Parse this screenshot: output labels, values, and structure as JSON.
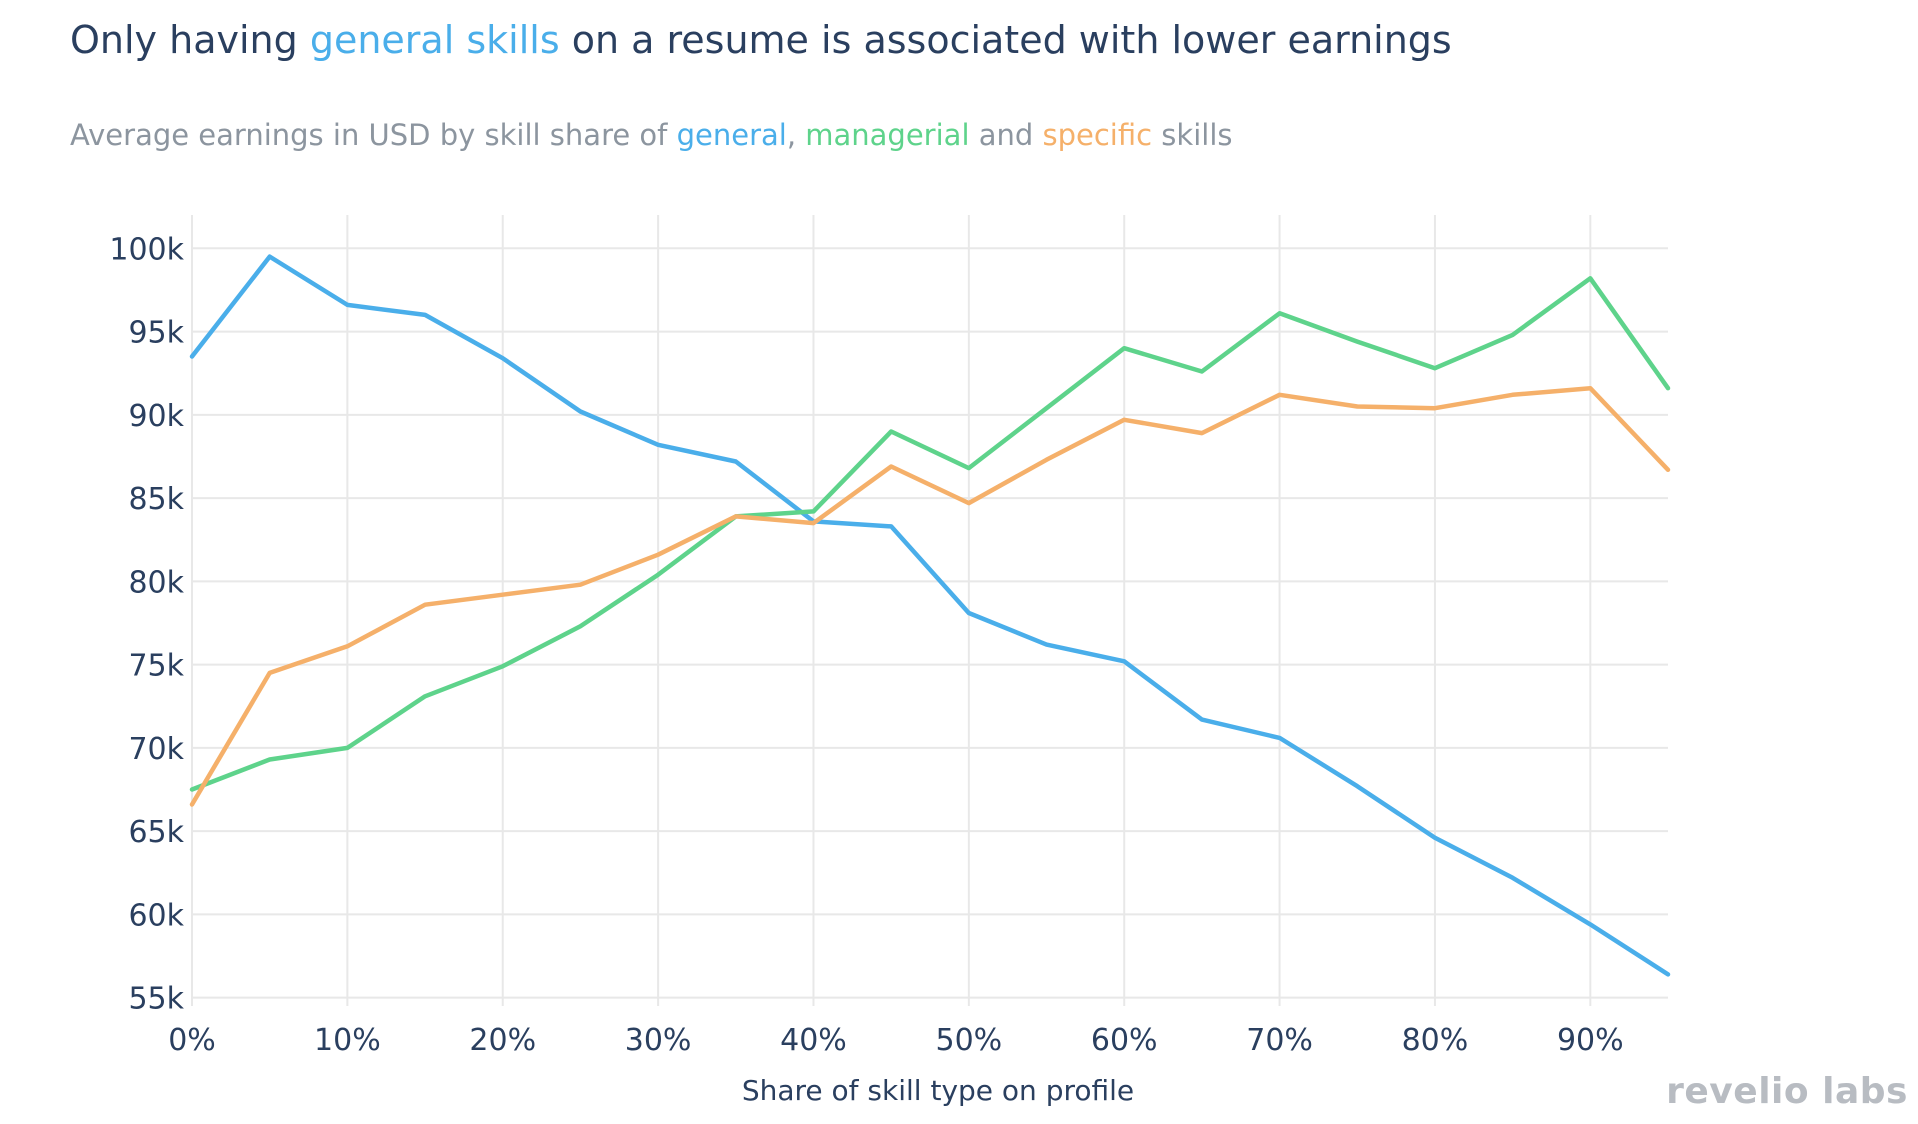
{
  "title": {
    "prefix": "Only having ",
    "highlight": "general skills",
    "suffix": " on a resume is associated with lower earnings"
  },
  "subtitle": {
    "part1": "Average earnings in USD by skill share of ",
    "general": "general",
    "comma": ", ",
    "managerial": "managerial",
    "and": " and ",
    "specific": "specific",
    "tail": " skills"
  },
  "brand": {
    "word1": "revelio",
    "word2": "labs"
  },
  "colors": {
    "general": "#4aaeea",
    "managerial": "#5ed38b",
    "specific": "#f5b06a",
    "title": "#2a3f5f",
    "subtitle": "#8c959f",
    "grid": "#e8e8e8"
  },
  "chart_data": {
    "type": "line",
    "xlabel": "Share of skill type on profile",
    "ylabel": "",
    "x": [
      0,
      5,
      10,
      15,
      20,
      25,
      30,
      35,
      40,
      45,
      50,
      55,
      60,
      65,
      70,
      75,
      80,
      85,
      90,
      95
    ],
    "xlim": [
      0,
      95
    ],
    "ylim": [
      54500,
      102000
    ],
    "grid": true,
    "x_ticks": [
      0,
      10,
      20,
      30,
      40,
      50,
      60,
      70,
      80,
      90
    ],
    "x_tick_labels": [
      "0%",
      "10%",
      "20%",
      "30%",
      "40%",
      "50%",
      "60%",
      "70%",
      "80%",
      "90%"
    ],
    "y_ticks": [
      55000,
      60000,
      65000,
      70000,
      75000,
      80000,
      85000,
      90000,
      95000,
      100000
    ],
    "y_tick_labels": [
      "55k",
      "60k",
      "65k",
      "70k",
      "75k",
      "80k",
      "85k",
      "90k",
      "95k",
      "100k"
    ],
    "series": [
      {
        "key": "general",
        "name": "general",
        "values": [
          93500,
          99500,
          96600,
          96000,
          93400,
          90200,
          88200,
          87200,
          83600,
          83300,
          78100,
          76200,
          75200,
          71700,
          70600,
          67700,
          64600,
          62200,
          59400,
          56400
        ]
      },
      {
        "key": "managerial",
        "name": "managerial",
        "values": [
          67500,
          69300,
          70000,
          73100,
          74900,
          77300,
          80400,
          83900,
          84200,
          89000,
          86800,
          90400,
          94000,
          92600,
          96100,
          94400,
          92800,
          94800,
          98200,
          91600
        ]
      },
      {
        "key": "specific",
        "name": "specific",
        "values": [
          66600,
          74500,
          76100,
          78600,
          79200,
          79800,
          81600,
          83900,
          83500,
          86900,
          84700,
          87300,
          89700,
          88900,
          91200,
          90500,
          90400,
          91200,
          91600,
          86700
        ]
      }
    ]
  }
}
